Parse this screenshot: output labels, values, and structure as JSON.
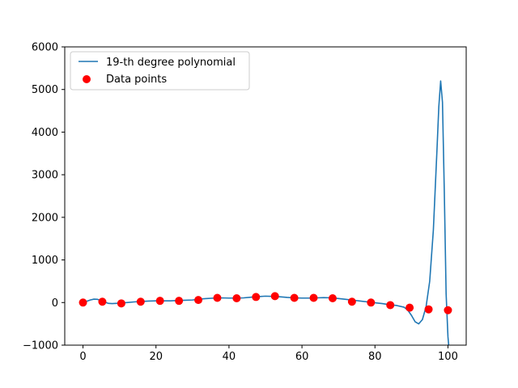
{
  "chart_data": {
    "type": "scatter",
    "title": "",
    "xlabel": "",
    "ylabel": "",
    "xlim": [
      -5,
      105
    ],
    "ylim": [
      -1000,
      6000
    ],
    "x_ticks": [
      0,
      20,
      40,
      60,
      80,
      100
    ],
    "y_ticks": [
      -1000,
      0,
      1000,
      2000,
      3000,
      4000,
      5000,
      6000
    ],
    "grid": false,
    "legend_position": "top-left",
    "series": [
      {
        "name": "19-th degree polynomial",
        "type": "line",
        "color": "#1f77b4",
        "x": [
          0,
          1,
          2,
          3,
          4,
          5,
          6,
          7,
          8,
          9,
          10,
          12,
          14,
          16,
          18,
          20,
          22,
          24,
          26,
          28,
          30,
          32,
          34,
          36,
          38,
          40,
          42,
          44,
          46,
          48,
          50,
          52,
          54,
          56,
          58,
          60,
          62,
          64,
          66,
          68,
          70,
          72,
          74,
          76,
          78,
          80,
          82,
          84,
          86,
          88,
          89,
          90,
          91,
          92,
          93,
          94,
          95,
          96,
          97,
          97.5,
          98,
          98.5,
          99,
          99.5,
          100,
          100.2
        ],
        "y": [
          0,
          30,
          60,
          80,
          75,
          45,
          10,
          -20,
          -25,
          -20,
          -15,
          0,
          15,
          25,
          35,
          40,
          40,
          40,
          50,
          55,
          60,
          80,
          95,
          105,
          110,
          105,
          105,
          110,
          125,
          140,
          150,
          145,
          135,
          120,
          110,
          105,
          105,
          110,
          115,
          110,
          95,
          75,
          55,
          35,
          15,
          -5,
          -25,
          -50,
          -70,
          -110,
          -180,
          -300,
          -450,
          -500,
          -400,
          -100,
          500,
          1700,
          3600,
          4600,
          5200,
          4700,
          2600,
          200,
          -800,
          -1000
        ]
      },
      {
        "name": "Data points",
        "type": "scatter",
        "color": "#ff0000",
        "x": [
          0,
          5.3,
          10.5,
          15.8,
          21.1,
          26.3,
          31.6,
          36.8,
          42.1,
          47.4,
          52.6,
          57.9,
          63.2,
          68.4,
          73.7,
          78.9,
          84.2,
          89.5,
          94.7,
          100
        ],
        "y": [
          0,
          20,
          -20,
          20,
          40,
          40,
          60,
          110,
          100,
          130,
          150,
          110,
          110,
          100,
          20,
          0,
          -60,
          -120,
          -160,
          -180
        ]
      }
    ]
  }
}
